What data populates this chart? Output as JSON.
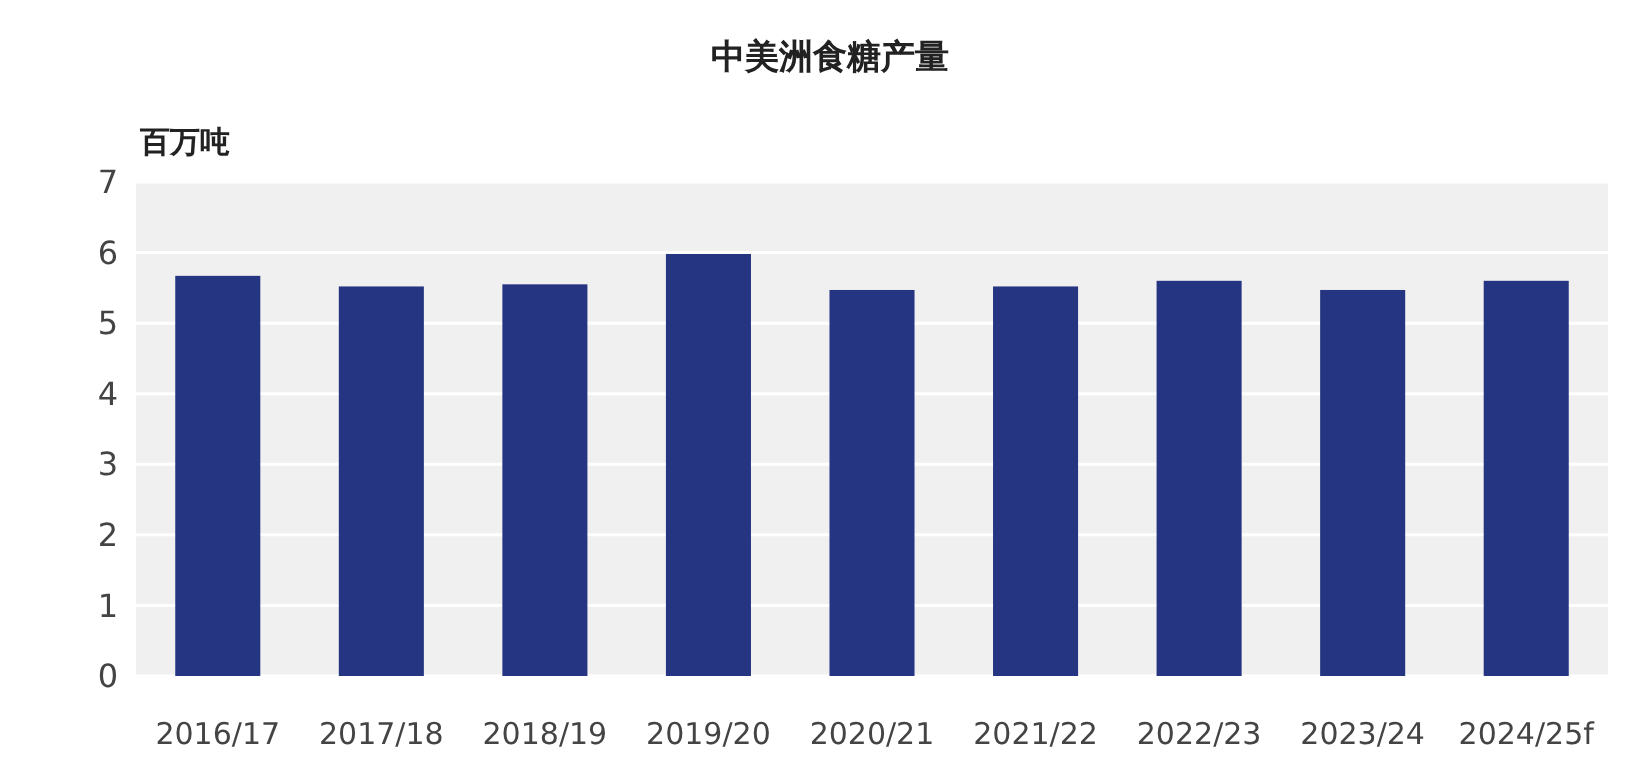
{
  "chart_data": {
    "type": "bar",
    "title": "中美洲食糖产量",
    "ylabel": "百万吨",
    "categories": [
      "2016/17",
      "2017/18",
      "2018/19",
      "2019/20",
      "2020/21",
      "2021/22",
      "2022/23",
      "2023/24",
      "2024/25f"
    ],
    "values": [
      5.67,
      5.52,
      5.55,
      5.98,
      5.47,
      5.52,
      5.6,
      5.47,
      5.6
    ],
    "color": "#253581",
    "ylim": [
      0,
      7
    ],
    "yticks": [
      0,
      1,
      2,
      3,
      4,
      5,
      6,
      7
    ],
    "grid": "y"
  }
}
